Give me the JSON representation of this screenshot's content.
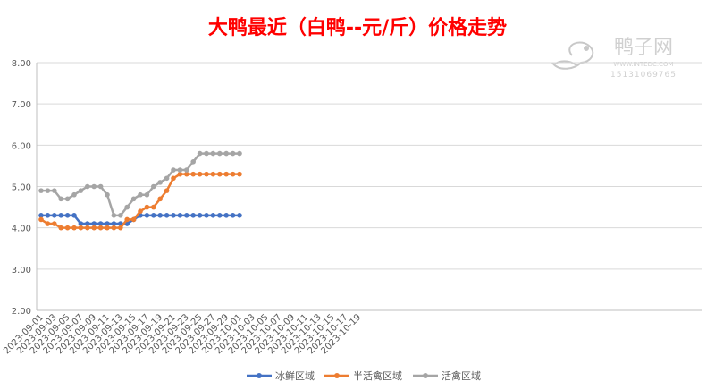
{
  "chart_data": {
    "type": "line",
    "title": "大鸭最近（白鸭--元/斤）价格走势",
    "watermark": {
      "name": "鸭子网",
      "url": "WWW.INTEDC.COM",
      "phone": "15131069765"
    },
    "ylim": [
      2.0,
      8.0
    ],
    "yticks": [
      "2.00",
      "3.00",
      "4.00",
      "5.00",
      "6.00",
      "7.00",
      "8.00"
    ],
    "xticks": [
      "2023-09-01",
      "2023-09-03",
      "2023-09-05",
      "2023-09-07",
      "2023-09-09",
      "2023-09-11",
      "2023-09-13",
      "2023-09-15",
      "2023-09-17",
      "2023-09-19",
      "2023-09-21",
      "2023-09-23",
      "2023-09-25",
      "2023-09-27",
      "2023-09-29",
      "2023-10-01",
      "2023-10-03",
      "2023-10-05",
      "2023-10-07",
      "2023-10-09",
      "2023-10-11",
      "2023-10-13",
      "2023-10-15",
      "2023-10-17",
      "2023-10-19"
    ],
    "grid": "horizontal",
    "legend_position": "bottom",
    "x": [
      "2023-09-01",
      "2023-09-02",
      "2023-09-03",
      "2023-09-04",
      "2023-09-05",
      "2023-09-06",
      "2023-09-07",
      "2023-09-08",
      "2023-09-09",
      "2023-09-10",
      "2023-09-11",
      "2023-09-12",
      "2023-09-13",
      "2023-09-14",
      "2023-09-15",
      "2023-09-16",
      "2023-09-17",
      "2023-09-18",
      "2023-09-19",
      "2023-09-20",
      "2023-09-21",
      "2023-09-22",
      "2023-09-23",
      "2023-09-24",
      "2023-09-25",
      "2023-09-26",
      "2023-09-27",
      "2023-09-28",
      "2023-09-29",
      "2023-09-30",
      "2023-10-01"
    ],
    "series": [
      {
        "name": "冰鲜区域",
        "color": "#4472C4",
        "values": [
          4.3,
          4.3,
          4.3,
          4.3,
          4.3,
          4.3,
          4.1,
          4.1,
          4.1,
          4.1,
          4.1,
          4.1,
          4.1,
          4.1,
          4.2,
          4.3,
          4.3,
          4.3,
          4.3,
          4.3,
          4.3,
          4.3,
          4.3,
          4.3,
          4.3,
          4.3,
          4.3,
          4.3,
          4.3,
          4.3,
          4.3
        ]
      },
      {
        "name": "半活禽区域",
        "color": "#ED7D31",
        "values": [
          4.2,
          4.1,
          4.1,
          4.0,
          4.0,
          4.0,
          4.0,
          4.0,
          4.0,
          4.0,
          4.0,
          4.0,
          4.0,
          4.2,
          4.2,
          4.4,
          4.5,
          4.5,
          4.7,
          4.9,
          5.2,
          5.3,
          5.3,
          5.3,
          5.3,
          5.3,
          5.3,
          5.3,
          5.3,
          5.3,
          5.3
        ]
      },
      {
        "name": "活禽区域",
        "color": "#A5A5A5",
        "values": [
          4.9,
          4.9,
          4.9,
          4.7,
          4.7,
          4.8,
          4.9,
          5.0,
          5.0,
          5.0,
          4.8,
          4.3,
          4.3,
          4.5,
          4.7,
          4.8,
          4.8,
          5.0,
          5.1,
          5.2,
          5.4,
          5.4,
          5.4,
          5.6,
          5.8,
          5.8,
          5.8,
          5.8,
          5.8,
          5.8,
          5.8
        ]
      }
    ]
  }
}
